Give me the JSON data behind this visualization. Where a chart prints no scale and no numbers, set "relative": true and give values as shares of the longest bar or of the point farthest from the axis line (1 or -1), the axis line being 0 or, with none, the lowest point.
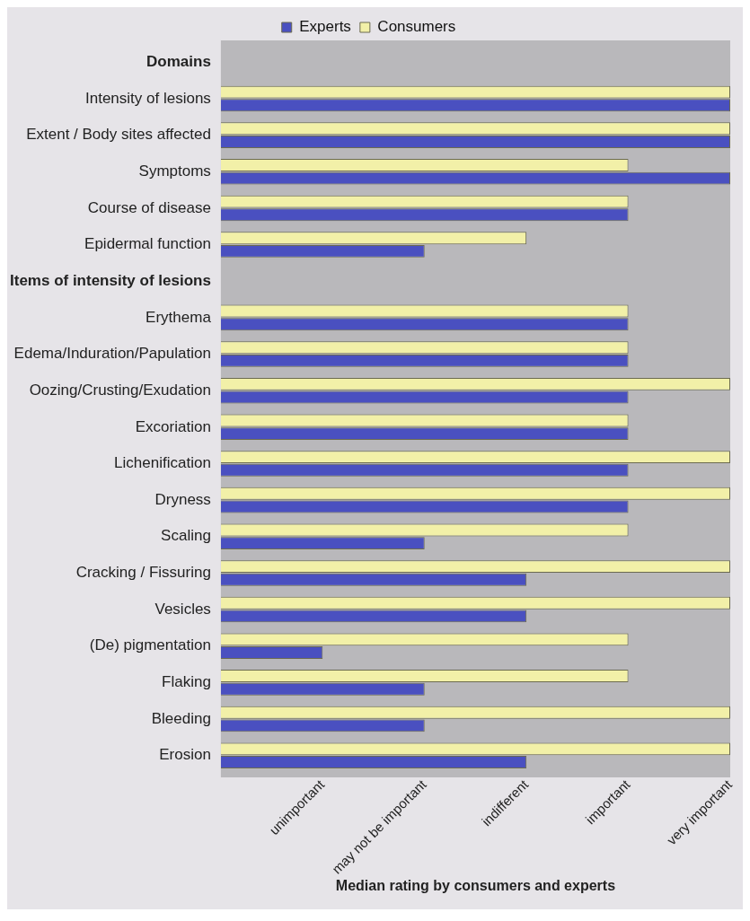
{
  "chart_data": {
    "type": "bar",
    "orientation": "horizontal",
    "relative": true,
    "categories": [
      "Domains",
      "Intensity of lesions",
      "Extent / Body sites affected",
      "Symptoms",
      "Course of disease",
      "Epidermal function",
      "Items of intensity of lesions",
      "Erythema",
      "Edema/Induration/Papulation",
      "Oozing/Crusting/Exudation",
      "Excoriation",
      "Lichenification",
      "Dryness",
      "Scaling",
      "Cracking / Fissuring",
      "Vesicles",
      "(De) pigmentation",
      "Flaking",
      "Bleeding",
      "Erosion"
    ],
    "series": [
      {
        "name": "Experts",
        "color": "#4a50c0",
        "values": [
          null,
          1,
          1,
          1,
          0.8,
          0.4,
          null,
          0.8,
          0.8,
          0.8,
          0.8,
          0.8,
          0.8,
          0.4,
          0.6,
          0.6,
          0.2,
          0.4,
          0.4,
          0.6
        ]
      },
      {
        "name": "Consumers",
        "color": "#f2f0a8",
        "values": [
          null,
          1,
          1,
          0.8,
          0.8,
          0.6,
          null,
          0.8,
          0.8,
          1,
          0.8,
          1,
          1,
          0.8,
          1,
          1,
          0.8,
          0.8,
          1,
          1
        ]
      }
    ],
    "annotations": [
      "unimportant",
      "may not be important",
      "indifferent",
      "important",
      "very important",
      "Median rating by consumers and experts"
    ],
    "legend": "top",
    "grid": false
  }
}
